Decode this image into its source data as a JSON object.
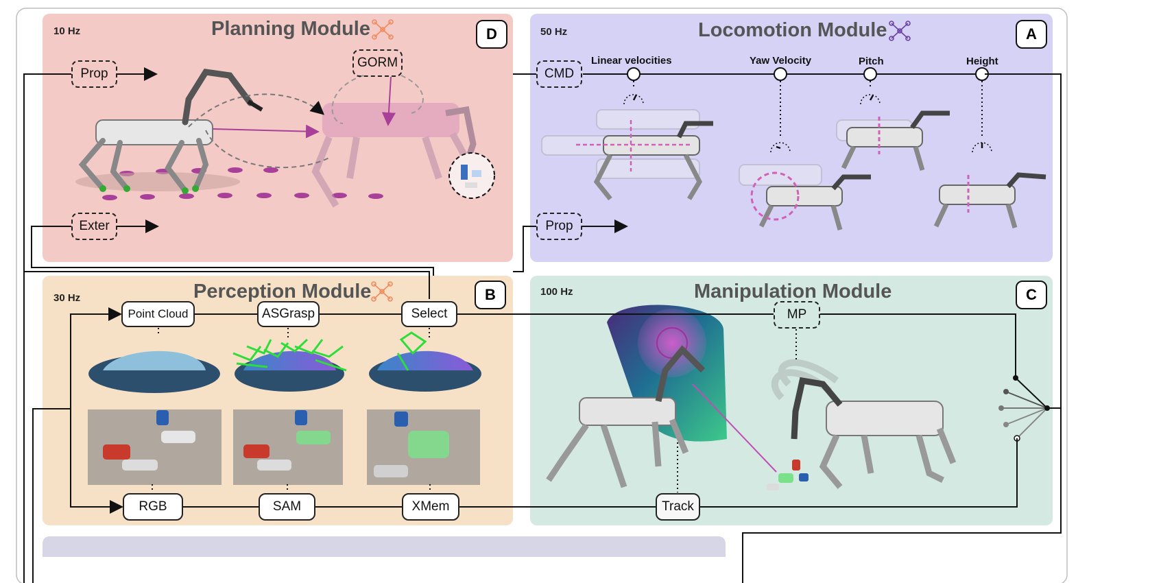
{
  "planning": {
    "title": "Planning Module",
    "freq": "10 Hz",
    "letter": "D",
    "prop": "Prop",
    "exter": "Exter",
    "gorm": "GORM"
  },
  "locomotion": {
    "title": "Locomotion Module",
    "freq": "50 Hz",
    "letter": "A",
    "cmd": "CMD",
    "prop": "Prop",
    "knobs": [
      "Linear velocities",
      "Yaw Velocity",
      "Pitch",
      "Height"
    ]
  },
  "perception": {
    "title": "Perception Module",
    "freq": "30 Hz",
    "letter": "B",
    "point_cloud": "Point Cloud",
    "asgrasp": "ASGrasp",
    "select": "Select",
    "rgb": "RGB",
    "sam": "SAM",
    "xmem": "XMem"
  },
  "manipulation": {
    "title": "Manipulation Module",
    "freq": "100 Hz",
    "letter": "C",
    "mp": "MP",
    "track": "Track"
  },
  "colors": {
    "planning_bg": "#f4cac6",
    "locomotion_bg": "#d5d2f6",
    "perception_bg": "#f6e1c7",
    "manipulation_bg": "#d3e9e2",
    "accent_magenta": "#a8409a",
    "network_orange": "#f08a5d",
    "network_purple": "#6a3fa0"
  },
  "icons": [
    "neural-network-icon",
    "robot-dog-illustration",
    "gauge-icon",
    "trash-objects",
    "grasp-poses",
    "voxel-workspace"
  ]
}
